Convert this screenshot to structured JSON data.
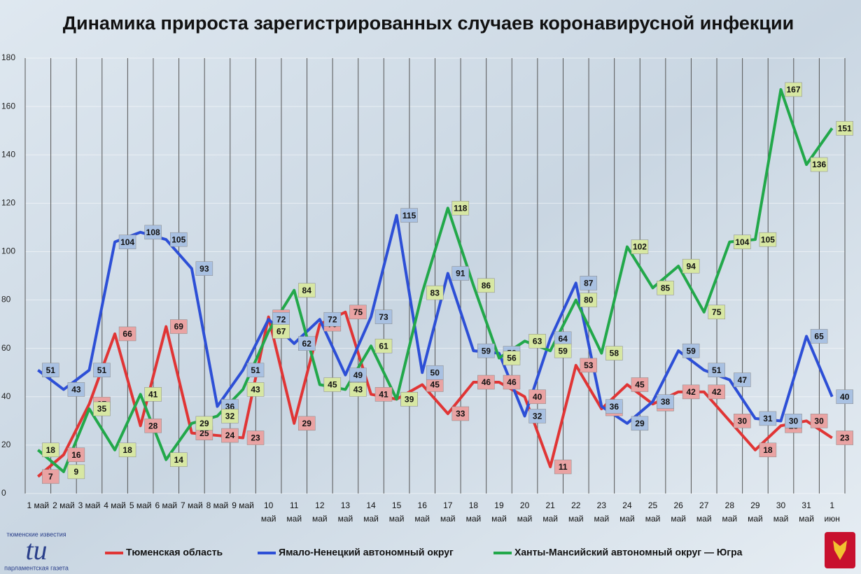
{
  "chart_data": {
    "type": "line",
    "title": "Динамика прироста зарегистрированных случаев коронавирусной инфекции",
    "categories": [
      "1 май",
      "2 май",
      "3 май",
      "4 май",
      "5 май",
      "6 май",
      "7 май",
      "8 май",
      "9 май",
      "10 май",
      "11 май",
      "12 май",
      "13 май",
      "14 май",
      "15 май",
      "16 май",
      "17 май",
      "18 май",
      "19 май",
      "20 май",
      "21 май",
      "22 май",
      "23 май",
      "24 май",
      "25 май",
      "26 май",
      "27 май",
      "28 май",
      "29 май",
      "30 май",
      "31 май",
      "1 июн"
    ],
    "series": [
      {
        "name": "Тюменская область",
        "color": "#e03535",
        "label_color": "#e9a3a3",
        "values": [
          7,
          16,
          37,
          66,
          28,
          69,
          25,
          24,
          23,
          73,
          29,
          70,
          75,
          41,
          39,
          45,
          33,
          46,
          46,
          40,
          11,
          53,
          35,
          45,
          37,
          42,
          42,
          30,
          18,
          28,
          30,
          23
        ]
      },
      {
        "name": "Ямало-Ненецкий автономный округ",
        "color": "#2d4fd6",
        "label_color": "#a9c1e2",
        "values": [
          51,
          43,
          51,
          104,
          108,
          105,
          93,
          36,
          51,
          72,
          62,
          72,
          49,
          73,
          115,
          50,
          91,
          59,
          58,
          32,
          64,
          87,
          36,
          29,
          38,
          59,
          51,
          47,
          31,
          30,
          65,
          40
        ]
      },
      {
        "name": "Ханты-Мансийский автономный округ — Югра",
        "color": "#22a84a",
        "label_color": "#d7e7a3",
        "values": [
          18,
          9,
          35,
          18,
          41,
          14,
          29,
          32,
          43,
          67,
          84,
          45,
          43,
          61,
          39,
          83,
          118,
          86,
          56,
          63,
          59,
          80,
          58,
          102,
          85,
          94,
          75,
          104,
          105,
          167,
          136,
          151
        ]
      }
    ],
    "ylim": [
      0,
      180
    ],
    "yticks": [
      0,
      20,
      40,
      60,
      80,
      100,
      120,
      140,
      160,
      180
    ],
    "grid": true,
    "legend": "bottom",
    "logo": {
      "top": "тюменские известия",
      "mark": "tu",
      "bottom": "парламентская газета"
    }
  }
}
